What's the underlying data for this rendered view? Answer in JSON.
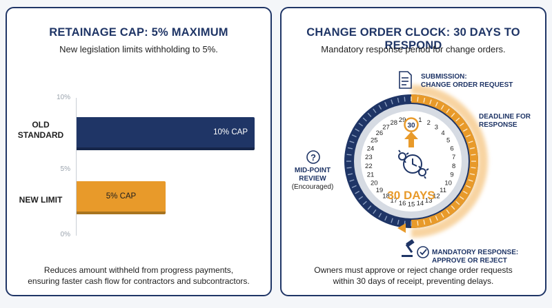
{
  "left": {
    "title": "RETAINAGE CAP: 5% MAXIMUM",
    "subtitle": "New legislation limits withholding to 5%.",
    "footer_line1": "Reduces amount withheld from progress payments,",
    "footer_line2": "ensuring faster cash flow for contractors and subcontractors."
  },
  "chart_data": {
    "type": "bar",
    "orientation": "horizontal",
    "categories": [
      "OLD STANDARD",
      "NEW LIMIT"
    ],
    "category_lines": [
      [
        "OLD",
        "STANDARD"
      ],
      [
        "NEW LIMIT"
      ]
    ],
    "values": [
      10,
      5
    ],
    "data_labels": [
      "10% CAP",
      "5% CAP"
    ],
    "ticks": [
      "10%",
      "5%",
      "0%"
    ],
    "xlim": [
      0,
      10
    ],
    "colors": [
      "#1f3566",
      "#e89a2a"
    ],
    "colors_dark": [
      "#152549",
      "#a8741f"
    ],
    "grid": false
  },
  "right": {
    "title": "CHANGE ORDER CLOCK: 30 DAYS TO RESPOND",
    "subtitle": "Mandatory response period for change orders.",
    "footer_line1": "Owners must approve or reject change order requests",
    "footer_line2": "within 30 days of receipt, preventing delays.",
    "center_text": "30 DAYS",
    "day_numbers": [
      "1",
      "2",
      "3",
      "4",
      "5",
      "6",
      "7",
      "8",
      "9",
      "10",
      "11",
      "12",
      "13",
      "14",
      "15",
      "16",
      "17",
      "18",
      "19",
      "20",
      "21",
      "22",
      "23",
      "24",
      "25",
      "26",
      "27",
      "28",
      "29",
      "30"
    ],
    "top_badge": "30",
    "submission_line1": "SUBMISSION:",
    "submission_line2": "CHANGE ORDER REQUEST",
    "deadline_line1": "DEADLINE FOR",
    "deadline_line2": "RESPONSE",
    "midpoint_line1": "MID-POINT",
    "midpoint_line2": "REVIEW",
    "midpoint_line3": "(Encouraged)",
    "mandatory_line1": "MANDATORY RESPONSE:",
    "mandatory_line2": "APPROVE OR REJECT",
    "question_glyph": "?",
    "colors": {
      "navy": "#1f3566",
      "orange": "#e89a2a",
      "ring_light": "#d6dbe3"
    },
    "icons": [
      "document-icon",
      "gear-clock-icon",
      "question-icon",
      "gavel-icon",
      "check-circle-icon",
      "arrow-up-icon"
    ]
  }
}
